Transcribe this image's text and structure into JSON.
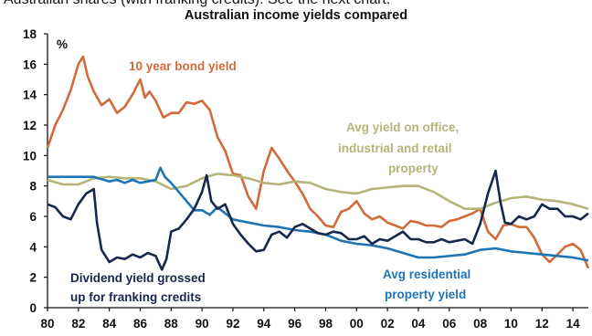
{
  "caption": "Australian shares (with franking credits). See the next chart.",
  "chart_data": {
    "type": "line",
    "title": "Australian income yields compared",
    "unit_label": "%",
    "ylim": [
      0,
      18
    ],
    "xlim": [
      1980,
      2015
    ],
    "y_ticks": [
      "0",
      "2",
      "4",
      "6",
      "8",
      "10",
      "12",
      "14",
      "16",
      "18"
    ],
    "x_ticks": [
      "80",
      "82",
      "84",
      "86",
      "88",
      "90",
      "92",
      "94",
      "96",
      "98",
      "00",
      "02",
      "04",
      "06",
      "08",
      "10",
      "12",
      "14"
    ],
    "grid": false,
    "colors": {
      "bond": "#d36a3a",
      "office": "#b5b57a",
      "residential": "#1f74b3",
      "dividend": "#18274d"
    },
    "annotations": {
      "bond": "10 year bond yield",
      "office": [
        "Avg yield on office,",
        "industrial and retail",
        "property"
      ],
      "residential": [
        "Avg residential",
        "property yield"
      ],
      "dividend": [
        "Dividend yield grossed",
        "up for franking credits"
      ]
    },
    "series": [
      {
        "key": "bond",
        "x": [
          1980,
          1980.5,
          1981,
          1981.5,
          1982,
          1982.3,
          1982.6,
          1983,
          1983.5,
          1984,
          1984.5,
          1985,
          1985.5,
          1986,
          1986.3,
          1986.6,
          1987,
          1987.5,
          1988,
          1988.5,
          1989,
          1989.5,
          1990,
          1990.5,
          1991,
          1991.5,
          1992,
          1992.5,
          1993,
          1993.5,
          1994,
          1994.5,
          1995,
          1995.5,
          1996,
          1996.5,
          1997,
          1997.5,
          1998,
          1998.5,
          1999,
          1999.5,
          2000,
          2000.5,
          2001,
          2001.5,
          2002,
          2002.5,
          2003,
          2003.5,
          2004,
          2004.5,
          2005,
          2005.5,
          2006,
          2006.5,
          2007,
          2007.5,
          2008,
          2008.5,
          2009,
          2009.5,
          2010,
          2010.5,
          2011,
          2011.5,
          2012,
          2012.5,
          2013,
          2013.5,
          2014,
          2014.5,
          2015
        ],
        "y": [
          10.5,
          12.0,
          13.0,
          14.3,
          16.0,
          16.5,
          15.2,
          14.2,
          13.3,
          13.7,
          12.8,
          13.2,
          14.0,
          15.0,
          13.8,
          14.2,
          13.6,
          12.5,
          12.8,
          12.8,
          13.5,
          13.4,
          13.6,
          13.0,
          11.2,
          10.3,
          8.8,
          8.7,
          7.3,
          6.5,
          9.0,
          10.5,
          9.8,
          9.0,
          8.3,
          7.5,
          6.5,
          6.0,
          5.4,
          5.3,
          6.3,
          6.5,
          7.0,
          6.2,
          5.8,
          6.0,
          5.6,
          5.4,
          5.2,
          5.7,
          5.6,
          5.4,
          5.4,
          5.3,
          5.7,
          5.8,
          6.0,
          6.2,
          6.5,
          5.0,
          4.5,
          5.4,
          5.5,
          5.3,
          5.3,
          4.6,
          3.5,
          3.0,
          3.5,
          4.0,
          4.2,
          3.8,
          2.6
        ]
      },
      {
        "key": "office",
        "x": [
          1980,
          1981,
          1982,
          1983,
          1984,
          1985,
          1986,
          1987,
          1988,
          1989,
          1990,
          1991,
          1992,
          1993,
          1994,
          1995,
          1996,
          1997,
          1998,
          1999,
          2000,
          2001,
          2002,
          2003,
          2004,
          2005,
          2006,
          2007,
          2008,
          2009,
          2010,
          2011,
          2012,
          2013,
          2014,
          2015
        ],
        "y": [
          8.4,
          8.1,
          8.1,
          8.5,
          8.6,
          8.5,
          8.5,
          8.3,
          7.8,
          8.0,
          8.5,
          8.8,
          8.7,
          8.5,
          8.2,
          8.1,
          8.3,
          8.2,
          7.8,
          7.6,
          7.5,
          7.8,
          7.9,
          8.0,
          8.0,
          7.6,
          7.0,
          6.5,
          6.5,
          6.9,
          7.2,
          7.3,
          7.1,
          7.0,
          6.8,
          6.5
        ]
      },
      {
        "key": "residential",
        "x": [
          1980,
          1981,
          1982,
          1983,
          1984,
          1984.5,
          1985,
          1985.5,
          1986,
          1986.5,
          1987,
          1987.3,
          1987.6,
          1988,
          1988.5,
          1989,
          1989.5,
          1990,
          1990.5,
          1991,
          1992,
          1993,
          1994,
          1995,
          1996,
          1997,
          1998,
          1999,
          2000,
          2001,
          2002,
          2003,
          2004,
          2005,
          2006,
          2007,
          2008,
          2009,
          2010,
          2011,
          2012,
          2013,
          2014,
          2015
        ],
        "y": [
          8.6,
          8.6,
          8.6,
          8.6,
          8.3,
          8.4,
          8.2,
          8.4,
          8.2,
          8.3,
          8.4,
          9.2,
          8.6,
          8.2,
          7.6,
          7.0,
          6.4,
          6.4,
          6.1,
          6.6,
          5.8,
          5.6,
          5.4,
          5.3,
          5.1,
          5.0,
          4.8,
          4.4,
          4.2,
          4.1,
          3.9,
          3.6,
          3.3,
          3.3,
          3.4,
          3.5,
          3.8,
          3.9,
          3.7,
          3.6,
          3.5,
          3.4,
          3.3,
          3.1
        ]
      },
      {
        "key": "dividend",
        "x": [
          1980,
          1980.5,
          1981,
          1981.5,
          1982,
          1982.5,
          1983,
          1983.2,
          1983.5,
          1984,
          1984.5,
          1985,
          1985.5,
          1986,
          1986.5,
          1987,
          1987.4,
          1987.7,
          1988,
          1988.5,
          1989,
          1989.5,
          1990,
          1990.3,
          1990.6,
          1991,
          1991.5,
          1992,
          1992.5,
          1993,
          1993.5,
          1994,
          1994.5,
          1995,
          1995.5,
          1996,
          1996.5,
          1997,
          1997.5,
          1998,
          1998.5,
          1999,
          1999.5,
          2000,
          2000.5,
          2001,
          2001.5,
          2002,
          2002.5,
          2003,
          2003.5,
          2004,
          2004.5,
          2005,
          2005.5,
          2006,
          2006.5,
          2007,
          2007.5,
          2008,
          2008.5,
          2009,
          2009.3,
          2009.6,
          2010,
          2010.5,
          2011,
          2011.5,
          2012,
          2012.5,
          2013,
          2013.5,
          2014,
          2014.5,
          2015
        ],
        "y": [
          6.8,
          6.6,
          6.0,
          5.8,
          6.8,
          7.5,
          7.8,
          5.6,
          3.8,
          3.0,
          3.3,
          3.2,
          3.5,
          3.3,
          3.6,
          3.4,
          2.5,
          3.2,
          5.0,
          5.2,
          5.8,
          6.5,
          7.6,
          8.7,
          7.0,
          6.5,
          6.8,
          5.5,
          4.8,
          4.2,
          3.7,
          3.8,
          4.8,
          5.0,
          4.6,
          5.3,
          5.5,
          5.2,
          4.9,
          4.8,
          5.0,
          4.9,
          4.5,
          4.5,
          4.7,
          4.2,
          4.5,
          4.4,
          4.7,
          5.0,
          4.5,
          4.5,
          4.3,
          4.3,
          4.5,
          4.3,
          4.4,
          4.5,
          4.2,
          5.5,
          7.5,
          9.0,
          7.0,
          5.6,
          5.5,
          6.0,
          5.8,
          6.0,
          6.8,
          6.5,
          6.5,
          6.0,
          6.0,
          5.8,
          6.2
        ]
      }
    ]
  }
}
